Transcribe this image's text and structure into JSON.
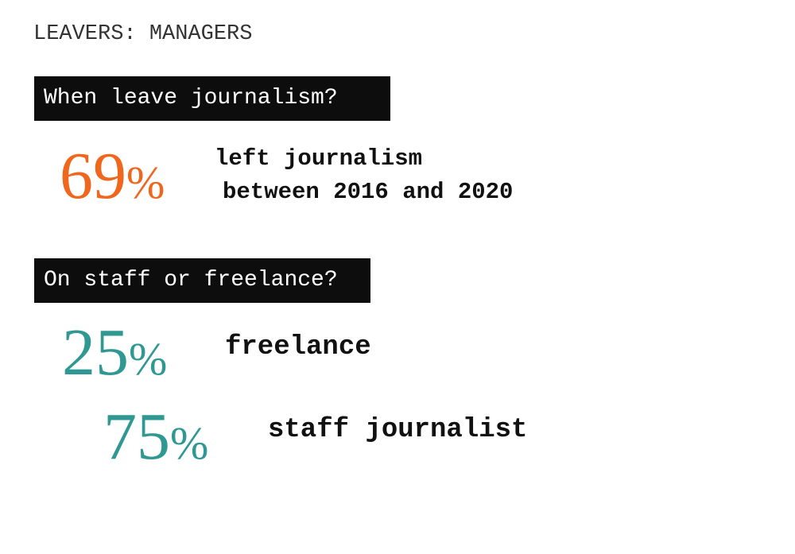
{
  "title": "LEAVERS: MANAGERS",
  "sections": [
    {
      "label": "When leave journalism?",
      "stats": [
        {
          "number": "69",
          "percent_sign": "%",
          "color": "#f0661c",
          "text_line_1": "left journalism",
          "text_line_2": "between 2016 and 2020"
        }
      ]
    },
    {
      "label": "On staff or freelance?",
      "stats": [
        {
          "number": "25",
          "percent_sign": "%",
          "color": "#2f9892",
          "text": "freelance"
        },
        {
          "number": "75",
          "percent_sign": "%",
          "color": "#2f9892",
          "text": "staff journalist"
        }
      ]
    }
  ]
}
